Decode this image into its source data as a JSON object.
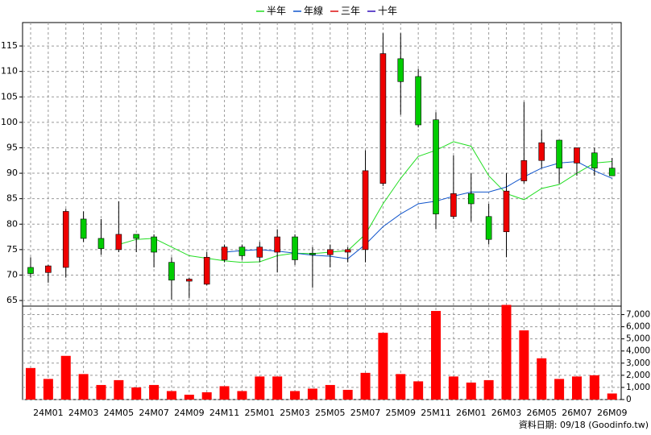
{
  "chart_data": {
    "type": "candlestick",
    "categories": [
      null,
      "24M01",
      null,
      "24M03",
      null,
      "24M05",
      null,
      "24M07",
      null,
      "24M09",
      null,
      "24M11",
      null,
      "25M01",
      null,
      "25M03",
      null,
      "25M05",
      null,
      "25M07",
      null,
      "25M09",
      null,
      "25M11",
      null,
      "26M01",
      null,
      "26M03",
      null,
      "26M05",
      null,
      "26M07",
      null,
      "26M09"
    ],
    "open": [
      71.5,
      70.5,
      71.5,
      81,
      77.2,
      75,
      78,
      77.5,
      72.5,
      68.8,
      68.2,
      73,
      75.5,
      73.5,
      74.5,
      77.5,
      74.3,
      74,
      74.5,
      75,
      88,
      112.5,
      109,
      100.5,
      81.5,
      86,
      81.5,
      78.5,
      88.5,
      92.5,
      96.5,
      92,
      94,
      91
    ],
    "high": [
      73.5,
      72,
      83,
      82.5,
      81,
      84.5,
      78,
      78,
      73.5,
      69.5,
      74.5,
      76,
      76,
      76.5,
      79,
      78,
      75.5,
      76,
      75.5,
      94.5,
      117.5,
      117.5,
      110.5,
      102,
      93.5,
      90,
      84,
      90,
      104,
      98.5,
      96.5,
      95,
      95,
      93
    ],
    "low": [
      69.5,
      68.5,
      69.5,
      76.5,
      74,
      74.5,
      74.5,
      71.5,
      65.2,
      65.5,
      68,
      72.5,
      73,
      72.5,
      70.5,
      72,
      67.5,
      71.5,
      72.5,
      72.5,
      87.5,
      101.5,
      99,
      79,
      81,
      80.5,
      76,
      73.5,
      88,
      91,
      88,
      89.5,
      89.5,
      89.5
    ],
    "close": [
      70.3,
      71.8,
      82.5,
      77.2,
      75.2,
      78,
      77.2,
      74.5,
      69,
      69.2,
      73.5,
      75.5,
      73.8,
      75.5,
      77.5,
      73,
      74,
      75,
      75,
      90.5,
      113.5,
      108,
      99.5,
      82,
      86,
      84,
      77,
      86.5,
      92.5,
      96,
      91,
      95,
      91,
      89.5
    ],
    "up_color": "#ee0000",
    "down_color": "#00cc00",
    "series": [
      {
        "name": "半年",
        "color": "#22dd22",
        "values": [
          null,
          null,
          null,
          null,
          null,
          76,
          77,
          77.2,
          75.5,
          73.8,
          73.3,
          72.8,
          72.5,
          72.6,
          73.8,
          74.3,
          74.2,
          74.5,
          74.8,
          78,
          84,
          89,
          93.3,
          94.5,
          96.2,
          95.3,
          89.5,
          86,
          84.8,
          87,
          87.8,
          90,
          92,
          92.3
        ]
      },
      {
        "name": "年線",
        "color": "#1155cc",
        "values": [
          null,
          null,
          null,
          null,
          null,
          null,
          null,
          null,
          null,
          null,
          null,
          74.5,
          74.8,
          75,
          74.7,
          74.3,
          73.9,
          73.7,
          73.2,
          76,
          79.5,
          82,
          84,
          84.5,
          85.5,
          86.3,
          86.3,
          87.3,
          89.3,
          91,
          92,
          92.3,
          90.5,
          89
        ]
      },
      {
        "name": "三年",
        "color": "#dd1111",
        "values": [
          null,
          null,
          null,
          null,
          null,
          null,
          null,
          null,
          null,
          null,
          null,
          null,
          null,
          null,
          null,
          null,
          null,
          null,
          null,
          null,
          null,
          null,
          null,
          null,
          null,
          null,
          null,
          null,
          null,
          null,
          null,
          null,
          null,
          null
        ]
      },
      {
        "name": "十年",
        "color": "#3311bb",
        "values": [
          null,
          null,
          null,
          null,
          null,
          null,
          null,
          null,
          null,
          null,
          null,
          null,
          null,
          null,
          null,
          null,
          null,
          null,
          null,
          null,
          null,
          null,
          null,
          null,
          null,
          null,
          null,
          null,
          null,
          null,
          null,
          null,
          null,
          null
        ]
      }
    ],
    "ylim": [
      63.9,
      119.6
    ],
    "yticks": [
      65,
      70,
      75,
      80,
      85,
      90,
      95,
      100,
      105,
      110,
      115
    ],
    "volume": {
      "color": "#ff0000",
      "values": [
        2600,
        1700,
        3600,
        2100,
        1200,
        1600,
        1000,
        1200,
        700,
        400,
        600,
        1100,
        700,
        1900,
        1900,
        700,
        900,
        1200,
        800,
        2200,
        5500,
        2100,
        1500,
        7300,
        1900,
        1400,
        1600,
        7800,
        5700,
        3400,
        1700,
        1900,
        2000,
        500
      ],
      "ylim": [
        0,
        7700
      ],
      "yticks": [
        0,
        {
          "value": 1000,
          "label": "1,000"
        },
        {
          "value": 2000,
          "label": "2,000"
        },
        {
          "value": 3000,
          "label": "3,000"
        },
        {
          "value": 4000,
          "label": "4,000"
        },
        {
          "value": 5000,
          "label": "5,000"
        },
        {
          "value": 6000,
          "label": "6,000"
        },
        {
          "value": 7000,
          "label": "7,000"
        }
      ]
    },
    "grid": true,
    "legend": "top",
    "source": "資料日期: 09/18 (Goodinfo.tw)"
  }
}
